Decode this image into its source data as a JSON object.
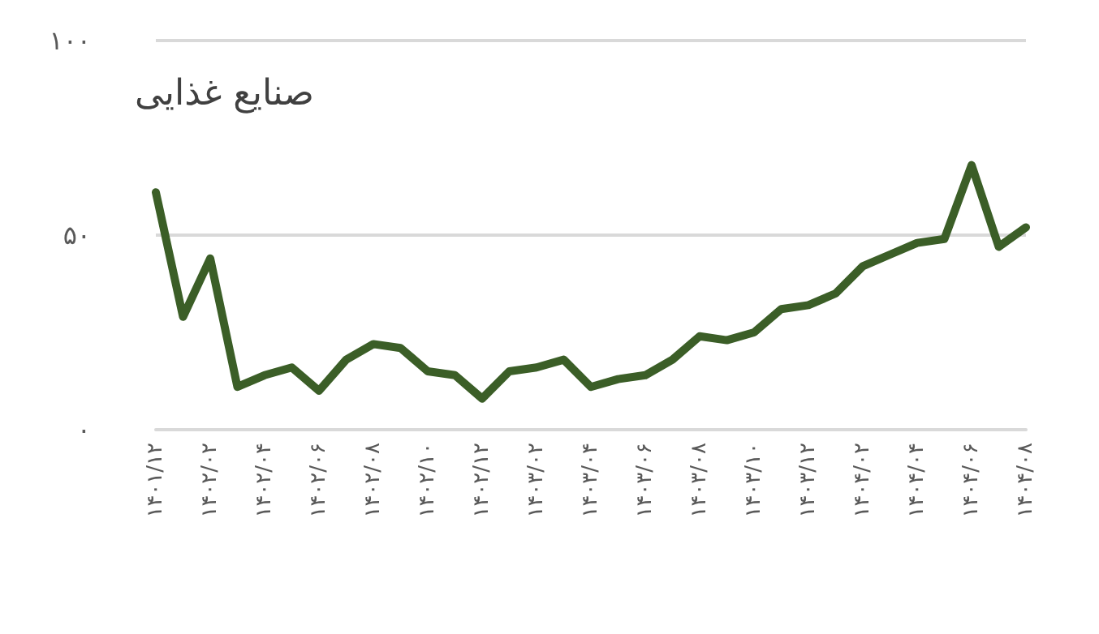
{
  "chart_data": {
    "type": "line",
    "title": "صنایع غذایی",
    "categories": [
      "۱۴۰۱/۱۲",
      null,
      "۱۴۰۲/۰۲",
      null,
      "۱۴۰۲/۰۴",
      null,
      "۱۴۰۲/۰۶",
      null,
      "۱۴۰۲/۰۸",
      null,
      "۱۴۰۲/۱۰",
      null,
      "۱۴۰۲/۱۲",
      null,
      "۱۴۰۳/۰۲",
      null,
      "۱۴۰۳/۰۴",
      null,
      "۱۴۰۳/۰۶",
      null,
      "۱۴۰۳/۰۸",
      null,
      "۱۴۰۳/۱۰",
      null,
      "۱۴۰۳/۱۲",
      null,
      "۱۴۰۴/۰۲",
      null,
      "۱۴۰۴/۰۴",
      null,
      "۱۴۰۴/۰۶",
      null,
      "۱۴۰۴/۰۸"
    ],
    "series": [
      {
        "color": "#3b5e27",
        "values": [
          61,
          29,
          44,
          11,
          14,
          16,
          10,
          18,
          22,
          21,
          15,
          14,
          8,
          15,
          16,
          18,
          11,
          13,
          14,
          18,
          24,
          23,
          25,
          31,
          32,
          35,
          42,
          45,
          48,
          49,
          68,
          47,
          52
        ]
      }
    ],
    "ylim": [
      0,
      100
    ],
    "yticks": [
      {
        "value": 0,
        "label": "۰"
      },
      {
        "value": 50,
        "label": "۵۰"
      },
      {
        "value": 100,
        "label": "۱۰۰"
      }
    ],
    "grid": "y",
    "marker": "none",
    "line_style": "solid"
  }
}
